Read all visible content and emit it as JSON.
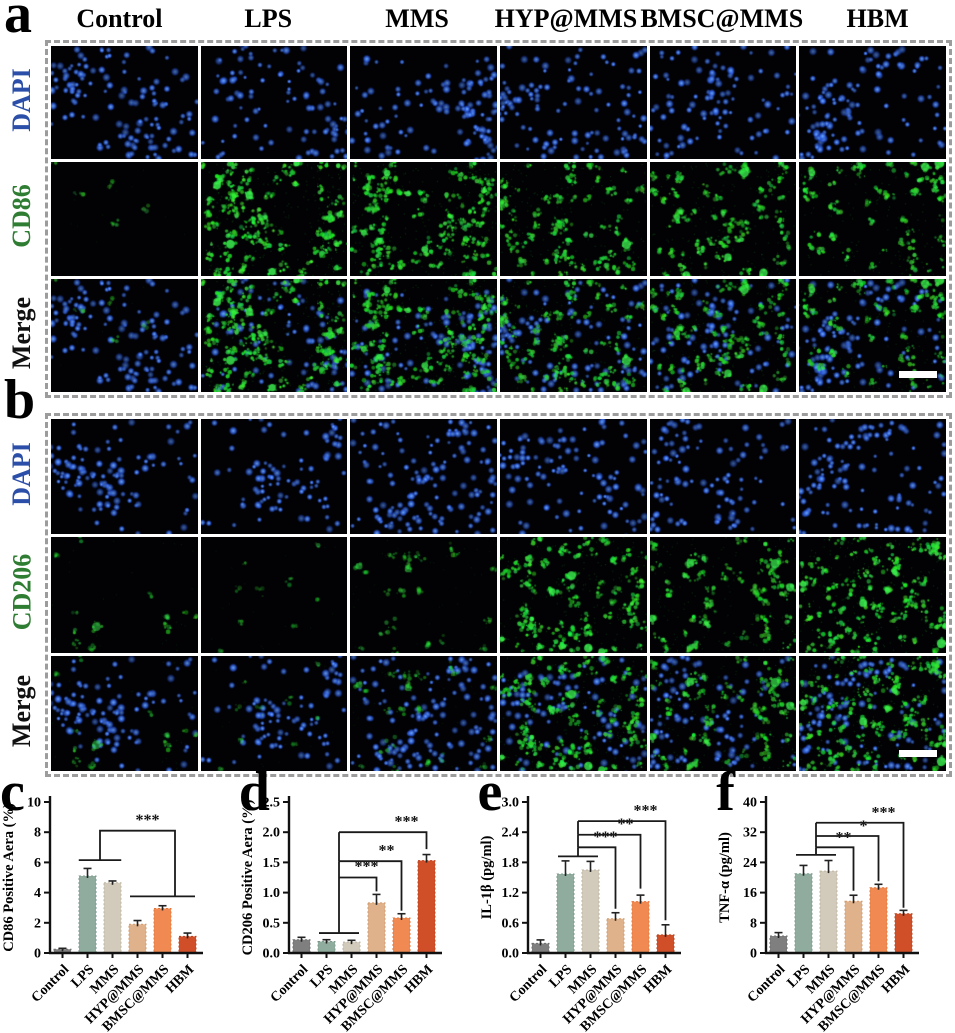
{
  "panels": {
    "a": {
      "letter": "a",
      "columns": [
        "Control",
        "LPS",
        "MMS",
        "HYP@MMS",
        "BMSC@MMS",
        "HBM"
      ],
      "rows": [
        {
          "label": "DAPI",
          "color": "#2b4fa8",
          "channel": "blue"
        },
        {
          "label": "CD86",
          "color": "#2e7d32",
          "channel": "green"
        },
        {
          "label": "Merge",
          "color": "#111111",
          "channel": "merge"
        }
      ],
      "dapi_density": [
        130,
        112,
        122,
        115,
        105,
        120
      ],
      "green_density": [
        6,
        95,
        90,
        65,
        70,
        55
      ],
      "green_alpha": [
        0.5,
        0.95,
        0.9,
        0.85,
        0.85,
        0.85
      ],
      "scale_bar": true
    },
    "b": {
      "letter": "b",
      "columns": [
        "Control",
        "LPS",
        "MMS",
        "HYP@MMS",
        "BMSC@MMS",
        "HBM"
      ],
      "rows": [
        {
          "label": "DAPI",
          "color": "#2b4fa8",
          "channel": "blue"
        },
        {
          "label": "CD206",
          "color": "#2e7d32",
          "channel": "green"
        },
        {
          "label": "Merge",
          "color": "#111111",
          "channel": "merge"
        }
      ],
      "dapi_density": [
        118,
        95,
        140,
        118,
        108,
        122
      ],
      "green_density": [
        12,
        9,
        22,
        85,
        62,
        90
      ],
      "green_alpha": [
        0.55,
        0.5,
        0.5,
        0.9,
        0.8,
        0.95
      ],
      "scale_bar": true
    }
  },
  "chart_data": [
    {
      "letter": "c",
      "type": "bar",
      "ylabel": "CD86 Positive Aera (%)",
      "categories": [
        "Control",
        "LPS",
        "MMS",
        "HYP@MMS",
        "BMSC@MMS",
        "HBM"
      ],
      "values": [
        0.25,
        5.1,
        4.65,
        1.9,
        2.95,
        1.1
      ],
      "errors": [
        0.06,
        0.5,
        0.12,
        0.25,
        0.18,
        0.22
      ],
      "ylim": [
        0,
        10
      ],
      "yticks": [
        "0",
        "2",
        "4",
        "6",
        "8",
        "10"
      ],
      "bar_colors": [
        "#7f7f7f",
        "#8fac9e",
        "#d2cabb",
        "#e0b28c",
        "#f08a52",
        "#d04f28"
      ],
      "bar_strokes": [
        "#6e6e6e",
        "#7c9a8c",
        "#bfb5a0",
        "#d09a6d",
        "#e0763c",
        "#b8431f"
      ],
      "sig": [
        {
          "stars": "***",
          "star_x": 3.4,
          "star_y": 8.35,
          "lines": [
            [
              [
                0.65,
                6.15
              ],
              [
                2.35,
                6.15
              ]
            ],
            [
              [
                1.5,
                6.15
              ],
              [
                1.5,
                8.1
              ],
              [
                4.5,
                8.1
              ],
              [
                4.5,
                3.75
              ]
            ],
            [
              [
                2.7,
                3.75
              ],
              [
                5.3,
                3.75
              ]
            ]
          ]
        }
      ]
    },
    {
      "letter": "d",
      "type": "bar",
      "ylabel": "CD206 Positive Aera (%)",
      "categories": [
        "Control",
        "LPS",
        "MMS",
        "HYP@MMS",
        "BMSC@MMS",
        "HBM"
      ],
      "values": [
        0.22,
        0.19,
        0.18,
        0.83,
        0.58,
        1.53
      ],
      "errors": [
        0.04,
        0.03,
        0.03,
        0.14,
        0.07,
        0.1
      ],
      "ylim": [
        0,
        2.5
      ],
      "yticks": [
        "0.0",
        "0.5",
        "1.0",
        "1.5",
        "2.0",
        "2.5"
      ],
      "bar_colors": [
        "#7f7f7f",
        "#8fac9e",
        "#d2cabb",
        "#e0b28c",
        "#f08a52",
        "#d04f28"
      ],
      "bar_strokes": [
        "#6e6e6e",
        "#7c9a8c",
        "#bfb5a0",
        "#d09a6d",
        "#e0763c",
        "#b8431f"
      ],
      "sig": [
        {
          "stars": "***",
          "star_x": 2.6,
          "star_y": 1.32,
          "lines": [
            [
              [
                0.7,
                0.33
              ],
              [
                2.3,
                0.33
              ]
            ],
            [
              [
                1.5,
                0.33
              ],
              [
                1.5,
                1.25
              ]
            ],
            [
              [
                1.5,
                1.25
              ],
              [
                3,
                1.25
              ],
              [
                3,
                1.02
              ]
            ]
          ]
        },
        {
          "stars": "**",
          "star_x": 3.4,
          "star_y": 1.58,
          "lines": [
            [
              [
                1.5,
                1.25
              ],
              [
                1.5,
                1.52
              ]
            ],
            [
              [
                1.5,
                1.52
              ],
              [
                4,
                1.52
              ],
              [
                4,
                0.7
              ]
            ]
          ]
        },
        {
          "stars": "***",
          "star_x": 4.2,
          "star_y": 2.06,
          "lines": [
            [
              [
                1.5,
                1.52
              ],
              [
                1.5,
                2.0
              ]
            ],
            [
              [
                1.5,
                2.0
              ],
              [
                5,
                2.0
              ],
              [
                5,
                1.72
              ]
            ]
          ]
        }
      ]
    },
    {
      "letter": "e",
      "type": "bar",
      "ylabel": "IL-1β (pg/ml)",
      "categories": [
        "Control",
        "LPS",
        "MMS",
        "HYP@MMS",
        "BMSC@MMS",
        "HBM"
      ],
      "values": [
        0.19,
        1.57,
        1.65,
        0.68,
        1.02,
        0.36
      ],
      "errors": [
        0.07,
        0.26,
        0.17,
        0.12,
        0.13,
        0.2
      ],
      "ylim": [
        0,
        3
      ],
      "yticks": [
        "0.0",
        "0.6",
        "1.2",
        "1.8",
        "2.4",
        "3.0"
      ],
      "bar_colors": [
        "#7f7f7f",
        "#8fac9e",
        "#d2cabb",
        "#e0b28c",
        "#f08a52",
        "#d04f28"
      ],
      "bar_strokes": [
        "#6e6e6e",
        "#7c9a8c",
        "#bfb5a0",
        "#d09a6d",
        "#e0763c",
        "#b8431f"
      ],
      "sig": [
        {
          "stars": "***",
          "star_x": 2.6,
          "star_y": 2.17,
          "lines": [
            [
              [
                0.7,
                1.92
              ],
              [
                2.3,
                1.92
              ]
            ],
            [
              [
                1.5,
                1.92
              ],
              [
                1.5,
                2.1
              ]
            ],
            [
              [
                1.5,
                2.1
              ],
              [
                3,
                2.1
              ],
              [
                3,
                0.88
              ]
            ]
          ]
        },
        {
          "stars": "**",
          "star_x": 3.4,
          "star_y": 2.42,
          "lines": [
            [
              [
                1.5,
                2.1
              ],
              [
                1.5,
                2.35
              ]
            ],
            [
              [
                1.5,
                2.35
              ],
              [
                4,
                2.35
              ],
              [
                4,
                1.28
              ]
            ]
          ]
        },
        {
          "stars": "***",
          "star_x": 4.2,
          "star_y": 2.69,
          "lines": [
            [
              [
                1.5,
                2.35
              ],
              [
                1.5,
                2.62
              ]
            ],
            [
              [
                1.5,
                2.62
              ],
              [
                5,
                2.62
              ],
              [
                5,
                0.65
              ]
            ]
          ]
        }
      ]
    },
    {
      "letter": "f",
      "type": "bar",
      "ylabel": "TNF-α (pg/ml)",
      "categories": [
        "Control",
        "LPS",
        "MMS",
        "HYP@MMS",
        "BMSC@MMS",
        "HBM"
      ],
      "values": [
        4.5,
        21,
        21.7,
        13.7,
        17.3,
        10.4
      ],
      "errors": [
        0.9,
        2.2,
        2.8,
        1.6,
        0.9,
        0.9
      ],
      "ylim": [
        0,
        40
      ],
      "yticks": [
        "0",
        "8",
        "16",
        "24",
        "32",
        "40"
      ],
      "bar_colors": [
        "#7f7f7f",
        "#8fac9e",
        "#d2cabb",
        "#e0b28c",
        "#f08a52",
        "#d04f28"
      ],
      "bar_strokes": [
        "#6e6e6e",
        "#7c9a8c",
        "#bfb5a0",
        "#d09a6d",
        "#e0763c",
        "#b8431f"
      ],
      "sig": [
        {
          "stars": "**",
          "star_x": 2.6,
          "star_y": 28.8,
          "lines": [
            [
              [
                0.7,
                26
              ],
              [
                2.3,
                26
              ]
            ],
            [
              [
                1.5,
                26
              ],
              [
                1.5,
                28
              ]
            ],
            [
              [
                1.5,
                28
              ],
              [
                3,
                28
              ],
              [
                3,
                16.5
              ]
            ]
          ]
        },
        {
          "stars": "*",
          "star_x": 3.4,
          "star_y": 31.8,
          "lines": [
            [
              [
                1.5,
                28
              ],
              [
                1.5,
                31
              ]
            ],
            [
              [
                1.5,
                31
              ],
              [
                4,
                31
              ],
              [
                4,
                19
              ]
            ]
          ]
        },
        {
          "stars": "***",
          "star_x": 4.2,
          "star_y": 35.4,
          "lines": [
            [
              [
                1.5,
                31
              ],
              [
                1.5,
                34.5
              ]
            ],
            [
              [
                1.5,
                34.5
              ],
              [
                5,
                34.5
              ],
              [
                5,
                12
              ]
            ]
          ]
        }
      ]
    }
  ]
}
